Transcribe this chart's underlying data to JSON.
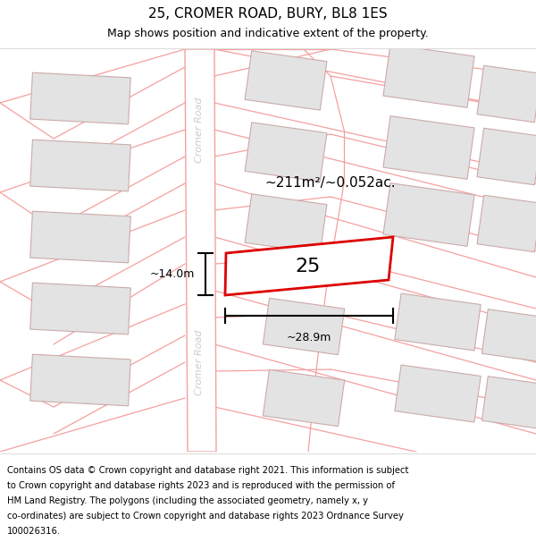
{
  "title": "25, CROMER ROAD, BURY, BL8 1ES",
  "subtitle": "Map shows position and indicative extent of the property.",
  "area_label": "~211m²/~0.052ac.",
  "property_number": "25",
  "dim_width": "~28.9m",
  "dim_height": "~14.0m",
  "road_label": "Cromer Road",
  "footer_lines": [
    "Contains OS data © Crown copyright and database right 2021. This information is subject",
    "to Crown copyright and database rights 2023 and is reproduced with the permission of",
    "HM Land Registry. The polygons (including the associated geometry, namely x, y",
    "co-ordinates) are subject to Crown copyright and database rights 2023 Ordnance Survey",
    "100026316."
  ],
  "map_bg": "#f5f5f5",
  "road_fill": "#ffffff",
  "road_line_color": "#f5a0a0",
  "building_fill": "#e3e3e3",
  "building_edge": "#ccaaaa",
  "property_fill": "#ffffff",
  "property_edge": "#dd0000",
  "dim_color": "#000000",
  "road_text_color": "#cccccc",
  "title_fontsize": 11,
  "subtitle_fontsize": 9,
  "area_fontsize": 11,
  "number_fontsize": 16,
  "footer_fontsize": 7.2,
  "road_label_fontsize": 8
}
